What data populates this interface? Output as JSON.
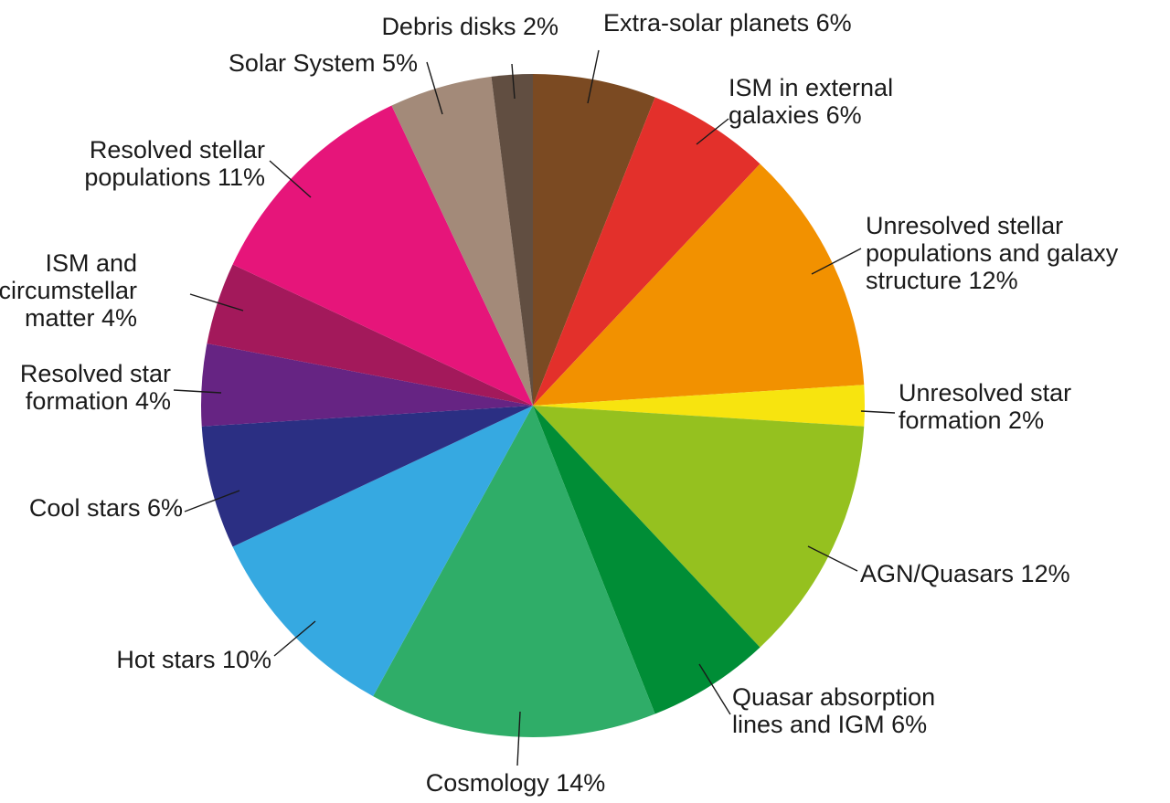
{
  "chart_data": {
    "type": "pie",
    "start": "12 o'clock",
    "direction": "clockwise",
    "slices": [
      {
        "label": [
          "Extra-solar planets 6%"
        ],
        "value": 6,
        "color": "#7b4a22"
      },
      {
        "label": [
          "ISM in external",
          "galaxies 6%"
        ],
        "value": 6,
        "color": "#e3302b"
      },
      {
        "label": [
          "Unresolved stellar",
          "populations and galaxy",
          "structure 12%"
        ],
        "value": 12,
        "color": "#f29100"
      },
      {
        "label": [
          "Unresolved star",
          "formation 2%"
        ],
        "value": 2,
        "color": "#f7e40f"
      },
      {
        "label": [
          "AGN/Quasars 12%"
        ],
        "value": 12,
        "color": "#95c11f"
      },
      {
        "label": [
          "Quasar absorption",
          "lines and IGM 6%"
        ],
        "value": 6,
        "color": "#008d36"
      },
      {
        "label": [
          "Cosmology 14%"
        ],
        "value": 14,
        "color": "#2fad68"
      },
      {
        "label": [
          "Hot stars 10%"
        ],
        "value": 10,
        "color": "#36a9e1"
      },
      {
        "label": [
          "Cool stars 6%"
        ],
        "value": 6,
        "color": "#2b2f83"
      },
      {
        "label": [
          "Resolved star",
          "formation 4%"
        ],
        "value": 4,
        "color": "#662483"
      },
      {
        "label": [
          "ISM and",
          "circumstellar",
          "matter 4%"
        ],
        "value": 4,
        "color": "#a3195b"
      },
      {
        "label": [
          "Resolved stellar",
          "populations 11%"
        ],
        "value": 11,
        "color": "#e6157a"
      },
      {
        "label": [
          "Solar System 5%"
        ],
        "value": 5,
        "color": "#a38a79"
      },
      {
        "label": [
          "Debris disks 2%"
        ],
        "value": 2,
        "color": "#614e41"
      }
    ]
  }
}
